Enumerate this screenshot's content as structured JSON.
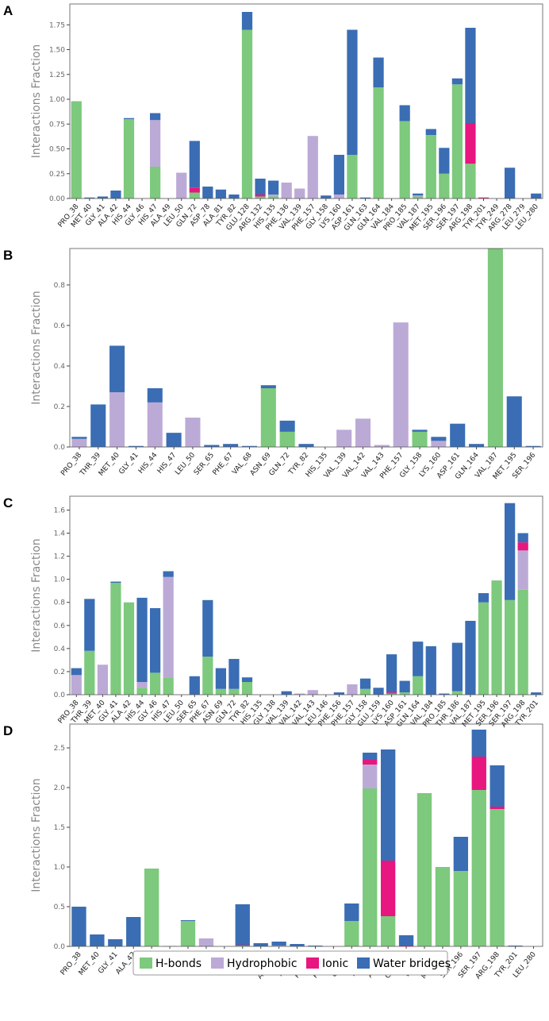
{
  "chart_data": [
    {
      "type": "stacked_bar",
      "label": "A",
      "ylabel": "Interactions Fraction",
      "categories": [
        "PRO_38",
        "MET_40",
        "GLY_41",
        "ALA_42",
        "HIS_44",
        "GLY_46",
        "HIS_47",
        "ALA_49",
        "LEU_50",
        "GLN_72",
        "ASP_78",
        "ALA_81",
        "TYR_82",
        "GLU_128",
        "ARG_132",
        "HIS_135",
        "PHE_136",
        "VAL_139",
        "PHE_157",
        "GLY_158",
        "LYS_160",
        "ASP_161",
        "GLN_163",
        "GLN_164",
        "VAL_184",
        "PRO_185",
        "VAL_187",
        "MET_195",
        "SER_196",
        "SER_197",
        "ARG_198",
        "TYR_201",
        "TYR_249",
        "ARG_278",
        "LEU_279",
        "LEU_280"
      ],
      "series": [
        {
          "name": "H-bonds",
          "color": "#7dc97d",
          "values": [
            0.98,
            0,
            0,
            0,
            0.8,
            0,
            0.32,
            0,
            0,
            0.06,
            0,
            0,
            0,
            1.7,
            0.02,
            0.02,
            0,
            0,
            0,
            0,
            0,
            0.44,
            0,
            1.12,
            0,
            0.78,
            0.02,
            0.64,
            0.25,
            1.15,
            0.35,
            0,
            0,
            0,
            0,
            0
          ]
        },
        {
          "name": "Hydrophobic",
          "color": "#bcaad6",
          "values": [
            0,
            0,
            0,
            0,
            0,
            0,
            0.47,
            0,
            0.26,
            0,
            0,
            0,
            0,
            0,
            0,
            0.02,
            0.16,
            0.1,
            0.63,
            0,
            0.04,
            0,
            0,
            0,
            0,
            0,
            0.01,
            0,
            0,
            0,
            0,
            0,
            0,
            0,
            0,
            0
          ]
        },
        {
          "name": "Ionic",
          "color": "#e8167f",
          "values": [
            0,
            0,
            0,
            0,
            0,
            0,
            0,
            0,
            0,
            0.05,
            0,
            0,
            0,
            0,
            0.02,
            0,
            0,
            0,
            0,
            0,
            0,
            0,
            0,
            0,
            0,
            0,
            0,
            0,
            0,
            0,
            0.41,
            0.01,
            0,
            0,
            0,
            0
          ]
        },
        {
          "name": "Water bridges",
          "color": "#3a6db4",
          "values": [
            0,
            0.01,
            0.02,
            0.08,
            0.01,
            0,
            0.07,
            0,
            0,
            0.47,
            0.12,
            0.09,
            0.04,
            0.18,
            0.16,
            0.14,
            0,
            0,
            0,
            0.03,
            0.4,
            1.26,
            0.01,
            0.3,
            0,
            0.16,
            0.02,
            0.06,
            0.26,
            0.06,
            0.96,
            0,
            0,
            0.31,
            0,
            0.05
          ]
        }
      ],
      "ylim": [
        0,
        1.96
      ],
      "yticks": [
        {
          "value": 0,
          "label": "0.00"
        },
        0.25,
        {
          "value": 0.5,
          "label": "0.50"
        },
        0.75,
        {
          "value": 1,
          "label": "1.00"
        },
        1.25,
        {
          "value": 1.5,
          "label": "1.50"
        },
        1.75
      ]
    },
    {
      "type": "stacked_bar",
      "label": "B",
      "ylabel": "Interactions Fraction",
      "categories": [
        "PRO_38",
        "THR_39",
        "MET_40",
        "GLY_41",
        "HIS_44",
        "HIS_47",
        "LEU_50",
        "SER_65",
        "PHE_67",
        "VAL_68",
        "ASN_69",
        "GLN_72",
        "TYR_82",
        "HIS_135",
        "VAL_139",
        "VAL_142",
        "VAL_143",
        "PHE_157",
        "GLY_158",
        "LYS_160",
        "ASP_161",
        "GLN_164",
        "VAL_187",
        "MET_195",
        "SER_196"
      ],
      "series": [
        {
          "name": "H-bonds",
          "color": "#7dc97d",
          "values": [
            0,
            0,
            0,
            0,
            0,
            0,
            0,
            0,
            0,
            0,
            0.29,
            0.075,
            0,
            0,
            0,
            0,
            0,
            0,
            0.075,
            0,
            0,
            0,
            0.98,
            0,
            0
          ]
        },
        {
          "name": "Hydrophobic",
          "color": "#bcaad6",
          "values": [
            0.04,
            0,
            0.27,
            0,
            0.22,
            0,
            0.145,
            0,
            0,
            0,
            0,
            0,
            0,
            0,
            0.085,
            0.14,
            0.01,
            0.615,
            0,
            0.03,
            0,
            0,
            0,
            0,
            0
          ]
        },
        {
          "name": "Ionic",
          "color": "#e8167f",
          "values": [
            0,
            0,
            0,
            0,
            0,
            0,
            0,
            0,
            0,
            0,
            0,
            0,
            0,
            0,
            0,
            0,
            0,
            0,
            0,
            0,
            0,
            0,
            0,
            0,
            0
          ]
        },
        {
          "name": "Water bridges",
          "color": "#3a6db4",
          "values": [
            0.01,
            0.21,
            0.23,
            0.005,
            0.07,
            0.07,
            0,
            0.01,
            0.015,
            0.005,
            0.015,
            0.055,
            0.015,
            0,
            0,
            0,
            0,
            0,
            0.01,
            0.02,
            0.115,
            0.015,
            0,
            0.25,
            0.005
          ]
        }
      ],
      "ylim": [
        0,
        0.98
      ],
      "yticks": [
        {
          "value": 0,
          "label": "0.0"
        },
        0.2,
        0.4,
        0.6,
        0.8
      ]
    },
    {
      "type": "stacked_bar",
      "label": "C",
      "ylabel": "Interactions Fraction",
      "categories": [
        "PRO_38",
        "THR_39",
        "MET_40",
        "GLY_41",
        "ALA_42",
        "HIS_44",
        "GLY_46",
        "HIS_47",
        "LEU_50",
        "SER_65",
        "PHE_67",
        "ASN_69",
        "GLN_72",
        "TYR_82",
        "HIS_135",
        "GLY_138",
        "VAL_139",
        "VAL_142",
        "VAL_143",
        "LEU_146",
        "PHE_156",
        "PHE_157",
        "GLY_158",
        "GLU_159",
        "LYS_160",
        "ASP_161",
        "GLN_164",
        "VAL_184",
        "PRO_185",
        "THR_186",
        "VAL_187",
        "MET_195",
        "SER_196",
        "SER_197",
        "ARG_198",
        "TYR_201"
      ],
      "series": [
        {
          "name": "H-bonds",
          "color": "#7dc97d",
          "values": [
            0,
            0.38,
            0,
            0.97,
            0.8,
            0.06,
            0.19,
            0.15,
            0,
            0,
            0.33,
            0.05,
            0.05,
            0.11,
            0,
            0,
            0,
            0,
            0,
            0,
            0,
            0,
            0.05,
            0,
            0.01,
            0.02,
            0.16,
            0,
            0,
            0.03,
            0,
            0.8,
            0.99,
            0.82,
            0.91,
            0
          ]
        },
        {
          "name": "Hydrophobic",
          "color": "#bcaad6",
          "values": [
            0.17,
            0,
            0.26,
            0,
            0,
            0.05,
            0,
            0.87,
            0,
            0,
            0,
            0,
            0,
            0,
            0,
            0,
            0,
            0.01,
            0.04,
            0,
            0,
            0.09,
            0,
            0,
            0,
            0,
            0,
            0,
            0,
            0,
            0,
            0,
            0,
            0,
            0.34,
            0
          ]
        },
        {
          "name": "Ionic",
          "color": "#e8167f",
          "values": [
            0,
            0,
            0,
            0,
            0,
            0,
            0,
            0,
            0,
            0,
            0,
            0,
            0,
            0,
            0,
            0,
            0,
            0,
            0,
            0,
            0,
            0,
            0,
            0,
            0.01,
            0,
            0,
            0,
            0,
            0,
            0,
            0,
            0,
            0,
            0.07,
            0
          ]
        },
        {
          "name": "Water bridges",
          "color": "#3a6db4",
          "values": [
            0.06,
            0.45,
            0,
            0.01,
            0,
            0.73,
            0.56,
            0.05,
            0,
            0.16,
            0.49,
            0.18,
            0.26,
            0.04,
            0,
            0,
            0.03,
            0,
            0,
            0,
            0.02,
            0,
            0.09,
            0.06,
            0.33,
            0.1,
            0.3,
            0.42,
            0.01,
            0.42,
            0.64,
            0.08,
            0,
            0.84,
            0.08,
            0.02
          ]
        }
      ],
      "ylim": [
        0,
        1.72
      ],
      "yticks": [
        {
          "value": 0,
          "label": "0.0"
        },
        0.2,
        0.4,
        0.6,
        0.8,
        {
          "value": 1,
          "label": "1.0"
        },
        1.2,
        1.4,
        1.6
      ]
    },
    {
      "type": "stacked_bar",
      "label": "D",
      "ylabel": "Interactions Fraction",
      "categories": [
        "PRO_38",
        "MET_40",
        "GLY_41",
        "ALA_42",
        "HIS_44",
        "GLY_46",
        "HIS_47",
        "ALA_49",
        "LEU_50",
        "GLN_72",
        "TYR_82",
        "ARG_132",
        "HIS_135",
        "PHE_156",
        "PHE_157",
        "GLY_158",
        "LYS_160",
        "ASP_161",
        "GLN_164",
        "VAL_187",
        "MET_195",
        "SER_196",
        "SER_197",
        "ARG_198",
        "TYR_201",
        "LEU_280"
      ],
      "series": [
        {
          "name": "H-bonds",
          "color": "#7dc97d",
          "values": [
            0,
            0,
            0,
            0,
            0.98,
            0,
            0.32,
            0,
            0,
            0.01,
            0,
            0,
            0,
            0,
            0,
            0.32,
            1.99,
            0.38,
            0,
            1.93,
            1.0,
            0.95,
            1.97,
            1.73,
            0,
            0
          ]
        },
        {
          "name": "Hydrophobic",
          "color": "#bcaad6",
          "values": [
            0,
            0,
            0,
            0,
            0,
            0,
            0,
            0.1,
            0,
            0,
            0,
            0.01,
            0,
            0,
            0,
            0,
            0.3,
            0,
            0,
            0,
            0,
            0,
            0,
            0,
            0,
            0
          ]
        },
        {
          "name": "Ionic",
          "color": "#e8167f",
          "values": [
            0,
            0,
            0,
            0,
            0,
            0,
            0,
            0,
            0,
            0.01,
            0,
            0,
            0,
            0,
            0,
            0,
            0.06,
            0.7,
            0.01,
            0,
            0,
            0,
            0.42,
            0.03,
            0,
            0
          ]
        },
        {
          "name": "Water bridges",
          "color": "#3a6db4",
          "values": [
            0.5,
            0.15,
            0.09,
            0.37,
            0,
            0.005,
            0.01,
            0,
            0,
            0.51,
            0.04,
            0.05,
            0.03,
            0.01,
            0,
            0.22,
            0.09,
            1.4,
            0.13,
            0,
            0,
            0.43,
            0.34,
            0.52,
            0.01,
            0
          ]
        }
      ],
      "ylim": [
        0,
        2.8
      ],
      "yticks": [
        {
          "value": 0,
          "label": "0.0"
        },
        0.5,
        {
          "value": 1,
          "label": "1.0"
        },
        1.5,
        {
          "value": 2,
          "label": "2.0"
        },
        2.5
      ]
    }
  ]
}
